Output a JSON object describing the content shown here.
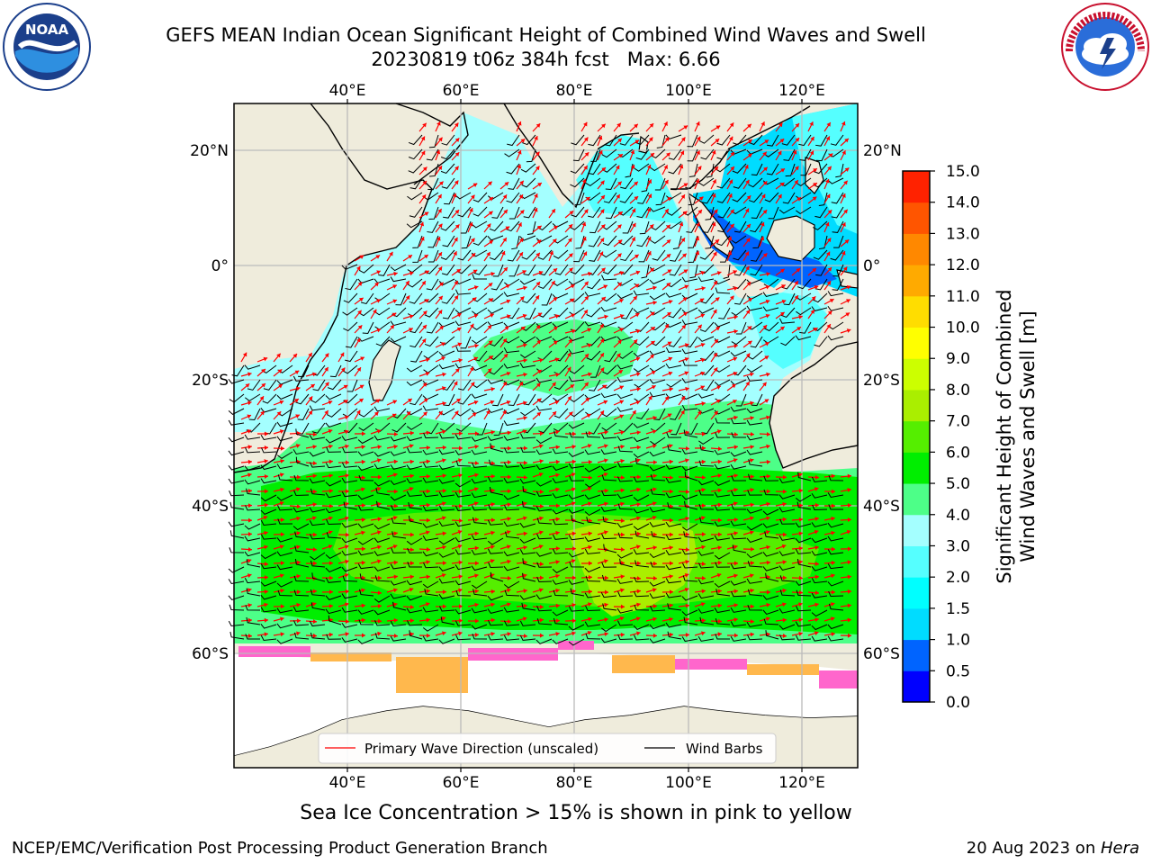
{
  "title": {
    "line1": "GEFS MEAN Indian Ocean Significant Height of Combined Wind Waves and Swell",
    "line2": "20230819 t06z 384h fcst   Max: 6.66"
  },
  "axes": {
    "lon_labels": [
      "40°E",
      "60°E",
      "80°E",
      "100°E",
      "120°E"
    ],
    "lat_labels_left": [
      "20°N",
      "0°",
      "20°S",
      "40°S",
      "60°S"
    ],
    "lat_labels_right": [
      "20°N",
      "0°",
      "20°S",
      "40°S",
      "60°S"
    ]
  },
  "legend": {
    "primary_wave_label": "Primary Wave Direction (unscaled)",
    "wind_barbs_label": "Wind Barbs",
    "primary_wave_color": "#ff0000",
    "wind_barbs_color": "#000000"
  },
  "colorbar": {
    "label_line1": "Significant Height of Combined",
    "label_line2": "Wind Waves and Swell [m]",
    "ticks": [
      "0.0",
      "0.5",
      "1.0",
      "1.5",
      "2.0",
      "3.0",
      "4.0",
      "5.0",
      "6.0",
      "7.0",
      "8.0",
      "9.0",
      "10.0",
      "11.0",
      "12.0",
      "13.0",
      "14.0",
      "15.0"
    ],
    "colors": [
      "#0000ff",
      "#0064ff",
      "#00dcff",
      "#00ffff",
      "#55ffff",
      "#a4ffff",
      "#4dff88",
      "#00ee00",
      "#55ee00",
      "#aaee00",
      "#ccff00",
      "#ffff00",
      "#ffdd00",
      "#ffaa00",
      "#ff8800",
      "#ff5500",
      "#ff2200",
      "#ff0000"
    ]
  },
  "map_colors": {
    "land": "#efecdc",
    "sea_ice": "#ffffff",
    "grid": "#bbbbbb"
  },
  "subtitle": "Sea Ice Concentration > 15% is shown in pink to yellow",
  "footer": {
    "left": "NCEP/EMC/Verification Post Processing Product Generation Branch",
    "right_date": "20 Aug 2023 on ",
    "right_host": "Hera"
  },
  "logos": {
    "noaa": "NOAA",
    "nws": "NATIONAL WEATHER SERVICE"
  }
}
